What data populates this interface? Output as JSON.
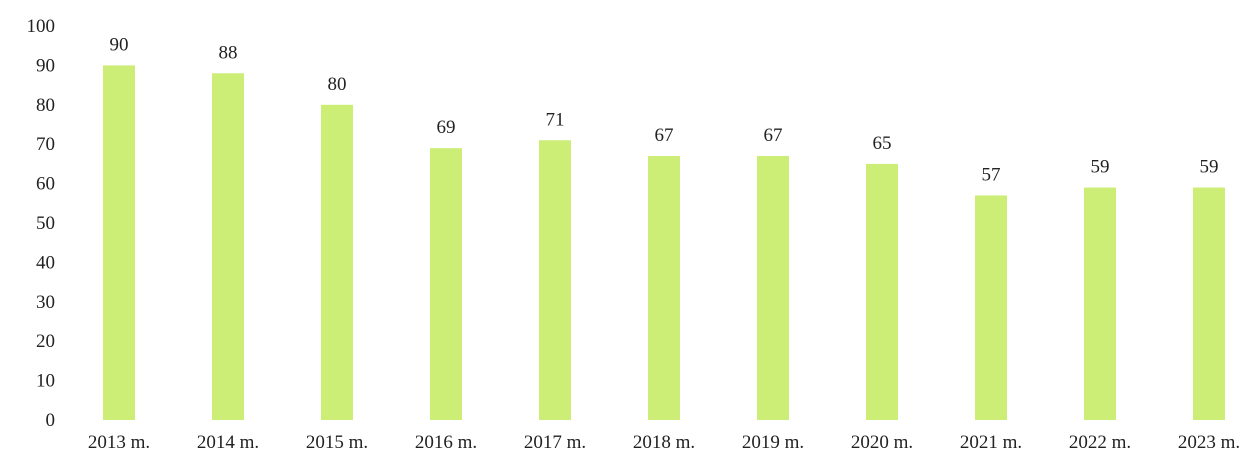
{
  "chart_data": {
    "type": "bar",
    "categories": [
      "2013 m.",
      "2014 m.",
      "2015 m.",
      "2016 m.",
      "2017 m.",
      "2018 m.",
      "2019 m.",
      "2020 m.",
      "2021 m.",
      "2022 m.",
      "2023 m."
    ],
    "values": [
      90,
      88,
      80,
      69,
      71,
      67,
      67,
      65,
      57,
      59,
      59
    ],
    "data_labels": [
      "90",
      "88",
      "80",
      "69",
      "71",
      "67",
      "67",
      "65",
      "57",
      "59",
      "59"
    ],
    "yticks": [
      "0",
      "10",
      "20",
      "30",
      "40",
      "50",
      "60",
      "70",
      "80",
      "90",
      "100"
    ],
    "ylim": [
      0,
      100
    ],
    "title": "",
    "xlabel": "",
    "ylabel": "",
    "grid": false,
    "legend": "none",
    "bar_color": "#ccee77"
  }
}
